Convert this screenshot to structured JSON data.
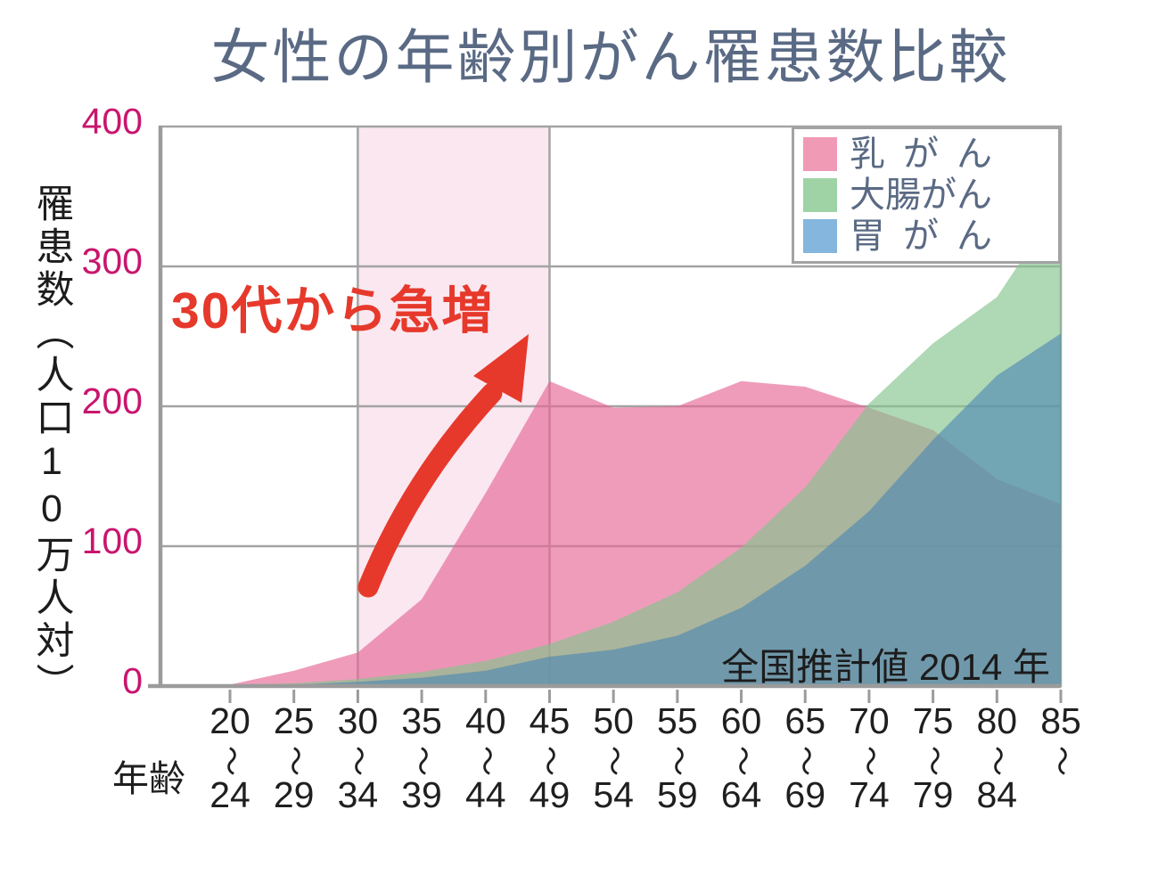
{
  "title": {
    "text": "女性の年齢別がん罹患数比較",
    "color": "#5a6a84"
  },
  "legend": {
    "items": [
      {
        "label": "乳がん",
        "color": "#f09ab6"
      },
      {
        "label": "大腸がん",
        "color": "#9fd3a5"
      },
      {
        "label": "胃がん",
        "color": "#84b6de"
      }
    ]
  },
  "chart_data": {
    "type": "area",
    "title": "女性の年齢別がん罹患数比較",
    "source_note": "全国推計値 2014 年",
    "x_axis_label": "年齢",
    "y_axis_label": "罹患数（人口10万人対）",
    "ylim": [
      0,
      400
    ],
    "y_ticks": [
      0,
      100,
      200,
      300,
      400
    ],
    "y_tick_color": "#c9156d",
    "grid_color": "#a3a3a3",
    "axis_color": "#9b9b9b",
    "x_label_color": "#1f1f1f",
    "grid": true,
    "legend_position": "top-right",
    "categories": [
      "20〜24",
      "25〜29",
      "30〜34",
      "35〜39",
      "40〜44",
      "45〜49",
      "50〜54",
      "55〜59",
      "60〜64",
      "65〜69",
      "70〜74",
      "75〜79",
      "80〜84",
      "85〜"
    ],
    "series": [
      {
        "id": "breast-cancer",
        "name": "乳がん",
        "fill": "#e66796",
        "fill_opacity": 0.65,
        "values": [
          1,
          11,
          24,
          62,
          138,
          218,
          199,
          200,
          218,
          214,
          199,
          183,
          148,
          130
        ]
      },
      {
        "id": "colorectal-cancer",
        "name": "大腸がん",
        "fill": "#84c38d",
        "fill_opacity": 0.65,
        "values": [
          1,
          2,
          5,
          10,
          18,
          30,
          46,
          67,
          99,
          142,
          202,
          245,
          278,
          347
        ]
      },
      {
        "id": "stomach-cancer",
        "name": "胃がん",
        "fill": "#4a86b4",
        "fill_opacity": 0.6,
        "values": [
          0,
          1,
          3,
          6,
          11,
          21,
          26,
          36,
          56,
          86,
          125,
          176,
          222,
          252
        ]
      }
    ],
    "highlight_band": {
      "from_category": "30〜34",
      "to_category": "45〜49",
      "from_index": 2,
      "to_index": 5,
      "fill": "#fae7f0"
    },
    "annotation": {
      "text": "30代から急増",
      "color": "#e6392b"
    }
  }
}
